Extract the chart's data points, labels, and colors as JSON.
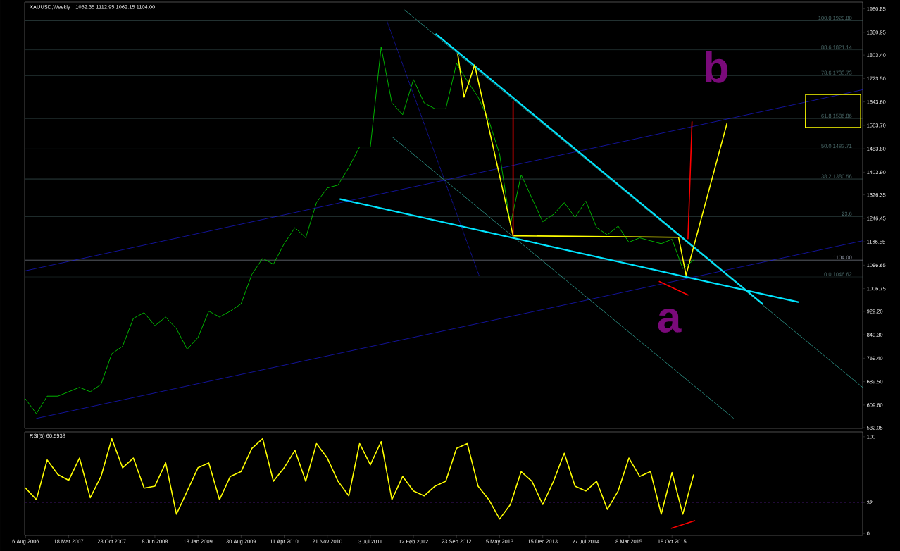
{
  "chart_data": [
    {
      "type": "line",
      "title": "XAUUSD,Weekly",
      "subtitle": "1062.35 1112.95 1062.15 1104.00",
      "x": [
        "2006-08-06",
        "2006-10-01",
        "2006-11-26",
        "2007-01-21",
        "2007-03-18",
        "2007-05-13",
        "2007-07-08",
        "2007-09-02",
        "2007-10-28",
        "2007-12-23",
        "2008-02-17",
        "2008-04-13",
        "2008-06-08",
        "2008-08-03",
        "2008-09-28",
        "2008-11-23",
        "2009-01-18",
        "2009-03-15",
        "2009-05-10",
        "2009-07-05",
        "2009-08-30",
        "2009-10-25",
        "2009-12-20",
        "2010-02-14",
        "2010-04-11",
        "2010-06-06",
        "2010-08-01",
        "2010-09-26",
        "2010-11-21",
        "2011-01-16",
        "2011-03-13",
        "2011-05-08",
        "2011-07-03",
        "2011-08-28",
        "2011-10-23",
        "2011-12-18",
        "2012-02-12",
        "2012-04-08",
        "2012-06-03",
        "2012-07-29",
        "2012-09-23",
        "2012-11-18",
        "2013-01-13",
        "2013-03-10",
        "2013-05-05",
        "2013-06-30",
        "2013-08-25",
        "2013-10-20",
        "2013-12-15",
        "2014-02-09",
        "2014-04-06",
        "2014-06-01",
        "2014-07-27",
        "2014-09-21",
        "2014-11-16",
        "2015-01-11",
        "2015-03-08",
        "2015-05-03",
        "2015-06-28",
        "2015-08-23",
        "2015-10-18",
        "2015-12-13",
        "2016-02-07"
      ],
      "xlim": [
        "2006-08-01",
        "2018-07-05"
      ],
      "ylim": [
        530,
        1984
      ],
      "yticks": [
        {
          "value": 532.05,
          "label": "532.05"
        },
        {
          "value": 609.6,
          "label": "609.60"
        },
        {
          "value": 689.5,
          "label": "689.50"
        },
        {
          "value": 769.4,
          "label": "769.40"
        },
        {
          "value": 849.3,
          "label": "849.30"
        },
        {
          "value": 929.2,
          "label": "929.20"
        },
        {
          "value": 1006.75,
          "label": "1006.75"
        },
        {
          "value": 1086.65,
          "label": "1086.65"
        },
        {
          "value": 1166.55,
          "label": "1166.55"
        },
        {
          "value": 1246.45,
          "label": "1246.45"
        },
        {
          "value": 1326.35,
          "label": "1326.35"
        },
        {
          "value": 1403.9,
          "label": "1403.90"
        },
        {
          "value": 1483.8,
          "label": "1483.80"
        },
        {
          "value": 1563.7,
          "label": "1563.70"
        },
        {
          "value": 1643.6,
          "label": "1643.60"
        },
        {
          "value": 1723.5,
          "label": "1723.50"
        },
        {
          "value": 1803.4,
          "label": "1803.40"
        },
        {
          "value": 1880.95,
          "label": "1880.95"
        },
        {
          "value": 1960.85,
          "label": "1960.85"
        }
      ],
      "tick_labels": "y",
      "series": [
        {
          "color": "#00e000",
          "values": [
            630,
            580,
            640,
            640,
            655,
            670,
            655,
            680,
            785,
            810,
            905,
            925,
            880,
            910,
            870,
            800,
            840,
            930,
            910,
            930,
            955,
            1055,
            1110,
            1090,
            1160,
            1215,
            1180,
            1300,
            1350,
            1360,
            1420,
            1490,
            1490,
            1830,
            1640,
            1600,
            1720,
            1640,
            1620,
            1620,
            1775,
            1715,
            1660,
            1580,
            1465,
            1225,
            1395,
            1315,
            1235,
            1260,
            1300,
            1250,
            1305,
            1215,
            1190,
            1220,
            1165,
            1180,
            1170,
            1160,
            1175,
            1075,
            1104
          ]
        },
        {
          "type": "line",
          "color": "#00e5ff",
          "x": [
            "2012-06-09",
            "2017-01-30"
          ],
          "values": [
            1875,
            955
          ]
        },
        {
          "type": "line",
          "color": "#00e5ff",
          "x": [
            "2011-01-27",
            "2017-08-03"
          ],
          "values": [
            1312,
            961
          ]
        },
        {
          "type": "line",
          "color": "#2020ff",
          "x": [
            "2006-08-01",
            "2018-07-05"
          ],
          "values": [
            1067,
            1685
          ]
        },
        {
          "type": "line",
          "color": "#2020ff",
          "x": [
            "2006-10-01",
            "2018-07-05"
          ],
          "values": [
            564,
            1170
          ]
        },
        {
          "type": "line",
          "color": "#40d0c0",
          "x": [
            "2011-12-29",
            "2018-07-05"
          ],
          "values": [
            1957,
            670
          ]
        },
        {
          "type": "line",
          "color": "#40d0c0",
          "x": [
            "2011-10-23",
            "2016-09-01"
          ],
          "values": [
            1525,
            565
          ]
        },
        {
          "type": "line",
          "color": "#2020ff",
          "line_style": "dotted",
          "x": [
            "2011-09-28",
            "2013-01-19"
          ],
          "values": [
            1918,
            1050
          ]
        },
        {
          "type": "line",
          "color": "#ffff00",
          "x": [
            "2012-09-29",
            "2012-11-01",
            "2012-12-26",
            "2013-07-14",
            "2015-11-21",
            "2015-12-30",
            "2016-07-30"
          ],
          "values": [
            1807,
            1660,
            1770,
            1187,
            1182,
            1053,
            1571
          ]
        },
        {
          "type": "line",
          "color": "#ff0000",
          "x": [
            "2013-07-14",
            "2013-07-14"
          ],
          "values": [
            1187,
            1647
          ]
        },
        {
          "type": "line",
          "color": "#ff0000",
          "x": [
            "2016-01-09",
            "2016-01-30"
          ],
          "values": [
            1177,
            1576
          ]
        },
        {
          "type": "line",
          "color": "#ff0000",
          "x": [
            "2015-08-13",
            "2016-01-10"
          ],
          "values": [
            1031,
            985
          ]
        },
        {
          "type": "line",
          "color": "#ffff00",
          "x": [
            "2017-09-11",
            "2018-06-25",
            "2018-06-25",
            "2017-09-11",
            "2017-09-12"
          ],
          "values": [
            1669,
            1669,
            1556,
            1556,
            1668
          ]
        }
      ],
      "ref_lines": [
        {
          "axis": "y",
          "value": 1920.8,
          "label": "100.0 1920.80",
          "color": "#4a6a6a"
        },
        {
          "axis": "y",
          "value": 1821.14,
          "label": "88.6 1821.14",
          "color": "#4a6a6a"
        },
        {
          "axis": "y",
          "value": 1733.73,
          "label": "78.6 1733.73",
          "color": "#4a6a6a"
        },
        {
          "axis": "y",
          "value": 1586.86,
          "label": "61.8 1586.86",
          "color": "#4a6a6a"
        },
        {
          "axis": "y",
          "value": 1483.71,
          "label": "50.0 1483.71",
          "color": "#4a6a6a"
        },
        {
          "axis": "y",
          "value": 1380.56,
          "label": "38.2 1380.56",
          "color": "#4a6a6a"
        },
        {
          "axis": "y",
          "value": 1252.9,
          "color": "#4a6a6a"
        },
        {
          "axis": "y",
          "value": 1046.62,
          "label": "0.0 1046.62",
          "color": "#4a6a6a"
        },
        {
          "axis": "y",
          "value": 1104,
          "label": "1104.00",
          "color": "#a0a8b8"
        }
      ],
      "annotations": [
        "a",
        "b",
        {
          "text": "23.6",
          "x": "2018-07-05",
          "y": 1252.9
        }
      ]
    },
    {
      "type": "line",
      "title": "RSI(5) 60.5938",
      "x": [
        "2006-08-06",
        "2006-10-01",
        "2006-11-26",
        "2007-01-21",
        "2007-03-18",
        "2007-05-13",
        "2007-07-08",
        "2007-09-02",
        "2007-10-28",
        "2007-12-23",
        "2008-02-17",
        "2008-04-13",
        "2008-06-08",
        "2008-08-03",
        "2008-09-28",
        "2008-11-23",
        "2009-01-18",
        "2009-03-15",
        "2009-05-10",
        "2009-07-05",
        "2009-08-30",
        "2009-10-25",
        "2009-12-20",
        "2010-02-14",
        "2010-04-11",
        "2010-06-06",
        "2010-08-01",
        "2010-09-26",
        "2010-11-21",
        "2011-01-16",
        "2011-03-13",
        "2011-05-08",
        "2011-07-03",
        "2011-08-28",
        "2011-10-23",
        "2011-12-18",
        "2012-02-12",
        "2012-04-08",
        "2012-06-03",
        "2012-07-29",
        "2012-09-23",
        "2012-11-18",
        "2013-01-13",
        "2013-03-10",
        "2013-05-05",
        "2013-06-30",
        "2013-08-25",
        "2013-10-20",
        "2013-12-15",
        "2014-02-09",
        "2014-04-06",
        "2014-06-01",
        "2014-07-27",
        "2014-09-21",
        "2014-11-16",
        "2015-01-11",
        "2015-03-08",
        "2015-05-03",
        "2015-06-28",
        "2015-08-23",
        "2015-10-18",
        "2015-12-13",
        "2016-02-07"
      ],
      "xlim": [
        "2006-08-01",
        "2018-07-05"
      ],
      "xticks": [
        {
          "value": "2006-08-06",
          "label": "6 Aug 2006"
        },
        {
          "value": "2007-03-18",
          "label": "18 Mar 2007"
        },
        {
          "value": "2007-10-28",
          "label": "28 Oct 2007"
        },
        {
          "value": "2008-06-08",
          "label": "8 Jun 2008"
        },
        {
          "value": "2009-01-18",
          "label": "18 Jan 2009"
        },
        {
          "value": "2009-08-30",
          "label": "30 Aug 2009"
        },
        {
          "value": "2010-04-11",
          "label": "11 Apr 2010"
        },
        {
          "value": "2010-11-21",
          "label": "21 Nov 2010"
        },
        {
          "value": "2011-07-03",
          "label": "3 Jul 2011"
        },
        {
          "value": "2012-02-12",
          "label": "12 Feb 2012"
        },
        {
          "value": "2012-09-23",
          "label": "23 Sep 2012"
        },
        {
          "value": "2013-05-05",
          "label": "5 May 2013"
        },
        {
          "value": "2013-12-15",
          "label": "15 Dec 2013"
        },
        {
          "value": "2014-07-27",
          "label": "27 Jul 2014"
        },
        {
          "value": "2015-03-08",
          "label": "8 Mar 2015"
        },
        {
          "value": "2015-10-18",
          "label": "18 Oct 2015"
        }
      ],
      "ylim": [
        -2,
        105
      ],
      "yticks": [
        0,
        32,
        100
      ],
      "series": [
        {
          "color": "#ffff00",
          "values": [
            47,
            35,
            76,
            61,
            55,
            78,
            37,
            59,
            98,
            68,
            78,
            47,
            49,
            73,
            20,
            44,
            68,
            73,
            35,
            59,
            64,
            88,
            98,
            54,
            68,
            86,
            54,
            93,
            78,
            54,
            39,
            93,
            71,
            95,
            35,
            59,
            44,
            39,
            49,
            54,
            88,
            93,
            49,
            35,
            15,
            30,
            64,
            54,
            30,
            54,
            83,
            49,
            44,
            54,
            25,
            44,
            78,
            59,
            64,
            20,
            63,
            20,
            60.6
          ]
        },
        {
          "type": "line",
          "color": "#ff0000",
          "x": [
            "2015-10-15",
            "2016-02-13"
          ],
          "values": [
            5.5,
            13.2
          ]
        }
      ],
      "ref_lines": [
        {
          "axis": "y",
          "value": 32,
          "color": "#6020a0",
          "line_style": "dashed"
        }
      ]
    }
  ]
}
